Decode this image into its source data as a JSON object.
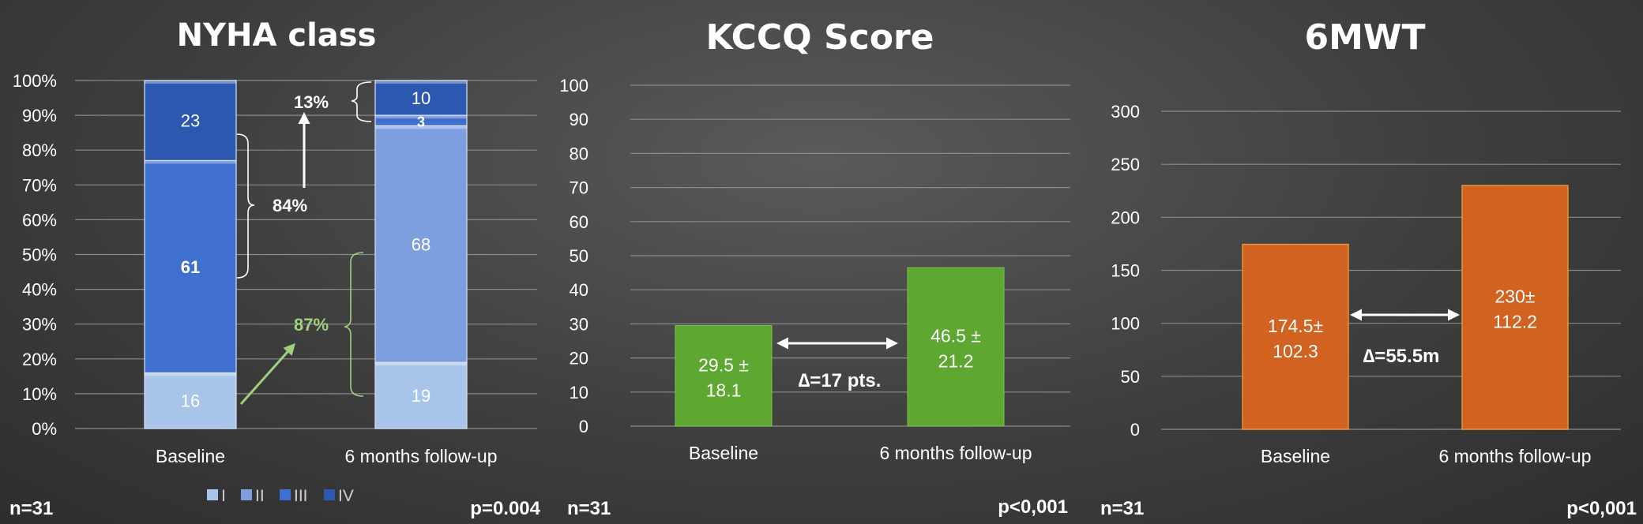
{
  "chart_data": [
    {
      "type": "bar",
      "stacked": true,
      "title": "NYHA class",
      "categories": [
        "Baseline",
        "6 months follow-up"
      ],
      "ylim": [
        0,
        100
      ],
      "yticks": [
        "0%",
        "10%",
        "20%",
        "30%",
        "40%",
        "50%",
        "60%",
        "70%",
        "80%",
        "90%",
        "100%"
      ],
      "series": [
        {
          "name": "I",
          "values": [
            16,
            19
          ],
          "color": "#a8c4e8"
        },
        {
          "name": "II",
          "values": [
            0,
            68
          ],
          "color": "#7d9fe0"
        },
        {
          "name": "III",
          "values": [
            61,
            3
          ],
          "color": "#3f6fcf"
        },
        {
          "name": "IV",
          "values": [
            23,
            10
          ],
          "color": "#2d58b0"
        }
      ],
      "annotations": {
        "pct_84": "84%",
        "pct_13": "13%",
        "pct_87": "87%"
      },
      "n_label": "n=31",
      "p_label": "p=0.004",
      "grid": true,
      "legend_placement": "bottom"
    },
    {
      "type": "bar",
      "title": "KCCQ Score",
      "categories": [
        "Baseline",
        "6 months follow-up"
      ],
      "values": [
        29.5,
        46.5
      ],
      "bar_labels": [
        [
          "29.5 ±",
          "18.1"
        ],
        [
          "46.5 ±",
          "21.2"
        ]
      ],
      "ylim": [
        0,
        100
      ],
      "yticks": [
        "0",
        "10",
        "20",
        "30",
        "40",
        "50",
        "60",
        "70",
        "80",
        "90",
        "100"
      ],
      "color": "#5ea832",
      "delta_label": "∆=17 pts.",
      "n_label": "n=31",
      "p_label": "p<0,001",
      "grid": true
    },
    {
      "type": "bar",
      "title": "6MWT",
      "categories": [
        "Baseline",
        "6 months follow-up"
      ],
      "values": [
        174.5,
        230
      ],
      "bar_labels": [
        [
          "174.5±",
          "102.3"
        ],
        [
          "230±",
          "112.2"
        ]
      ],
      "ylim": [
        0,
        300
      ],
      "yticks": [
        "0",
        "50",
        "100",
        "150",
        "200",
        "250",
        "300"
      ],
      "color": "#d2621f",
      "delta_label": "∆=55.5m",
      "n_label": "n=31",
      "p_label": "p<0,001",
      "grid": true
    }
  ]
}
